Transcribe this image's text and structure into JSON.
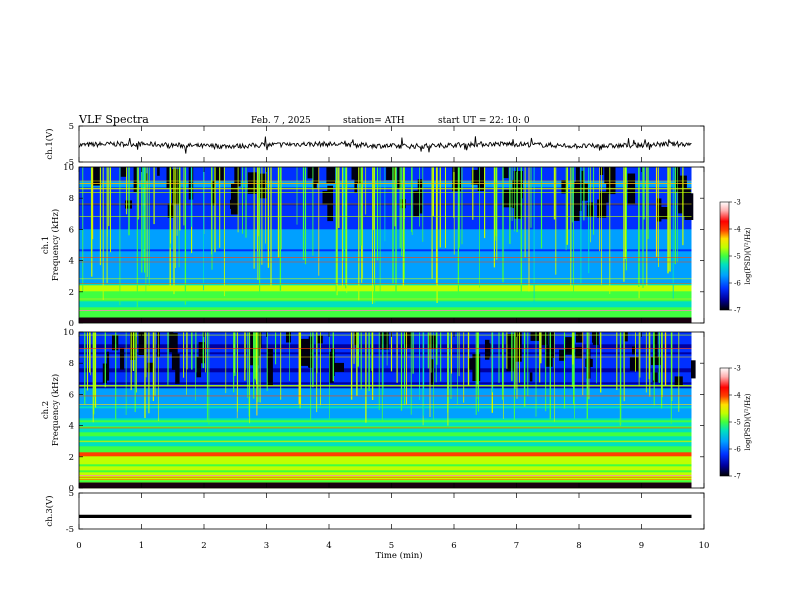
{
  "header": {
    "title": "VLF  Spectra",
    "date": "Feb. 7  , 2025",
    "station": "station= ATH",
    "start": "start  UT  =    22: 10: 0"
  },
  "chart_data": [
    {
      "type": "line",
      "panel": "ch1-waveform",
      "ylabel": "ch.1(V)",
      "yticks": [
        "5",
        "-5"
      ],
      "ylim": [
        -5,
        5
      ],
      "xlim": [
        0,
        10
      ],
      "note_series": "noisy signal around -0.5 V, spanning 0 to 9.8 min"
    },
    {
      "type": "heatmap",
      "panel": "ch1-spectrogram",
      "ylabel_top": "ch.1",
      "ylabel": "Frequency  (kHz)",
      "yticks": [
        "0",
        "2",
        "4",
        "6",
        "8",
        "10"
      ],
      "ylim": [
        0,
        10
      ],
      "xlim": [
        0,
        10
      ],
      "data_xmax": 9.8,
      "colorbar": {
        "label": "log(PSD)(V²/Hz)",
        "ticks": [
          "-3",
          "-4",
          "-5",
          "-6",
          "-7"
        ],
        "range": [
          -7,
          -3
        ]
      }
    },
    {
      "type": "heatmap",
      "panel": "ch2-spectrogram",
      "ylabel_top": "ch.2",
      "ylabel": "Frequency  (kHz)",
      "yticks": [
        "0",
        "2",
        "4",
        "6",
        "8",
        "10"
      ],
      "ylim": [
        0,
        10
      ],
      "xlim": [
        0,
        10
      ],
      "data_xmax": 9.8,
      "colorbar": {
        "label": "log(PSD)(V²/Hz)",
        "ticks": [
          "-3",
          "-4",
          "-5",
          "-6",
          "-7"
        ],
        "range": [
          -7,
          -3
        ]
      }
    },
    {
      "type": "line",
      "panel": "ch3-waveform",
      "ylabel": "ch.3(V)",
      "yticks": [
        "5",
        "-5"
      ],
      "ylim": [
        -5,
        5
      ],
      "xlim": [
        0,
        10
      ],
      "flat_value": -1.5,
      "xlabel": "Time  (min)",
      "xticks": [
        "0",
        "1",
        "2",
        "3",
        "4",
        "5",
        "6",
        "7",
        "8",
        "9",
        "10"
      ]
    }
  ],
  "colors": {
    "colormap": [
      "#000000",
      "#0000a0",
      "#0030ff",
      "#00a0ff",
      "#00e0c0",
      "#40ff40",
      "#c0ff00",
      "#ffe000",
      "#ff4000",
      "#ff0000",
      "#ffb0b0",
      "#ffffff"
    ]
  }
}
